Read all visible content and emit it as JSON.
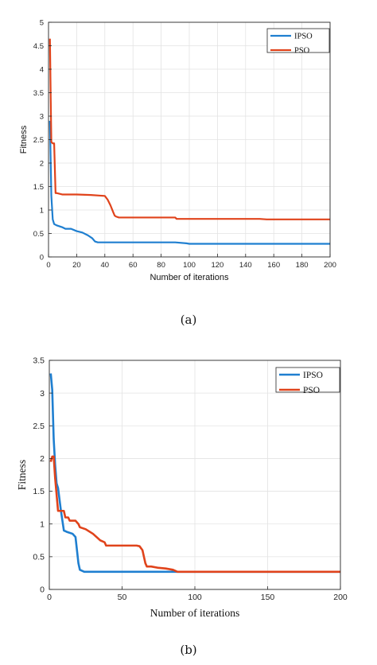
{
  "captions": [
    "(a)",
    "(b)"
  ],
  "chart_data": [
    {
      "type": "line",
      "xlabel": "Number of iterations",
      "ylabel": "Fitness",
      "xlim": [
        0,
        200
      ],
      "ylim": [
        0,
        5
      ],
      "xticks": [
        0,
        20,
        40,
        60,
        80,
        100,
        120,
        140,
        160,
        180,
        200
      ],
      "yticks": [
        0,
        0.5,
        1,
        1.5,
        2,
        2.5,
        3,
        3.5,
        4,
        4.5,
        5
      ],
      "ytick_labels": [
        "0",
        "0.5",
        "1",
        "1.5",
        "2",
        "2.5",
        "3",
        "3.5",
        "4",
        "4.5",
        "5"
      ],
      "grid": true,
      "legend_position": "top-right",
      "series": [
        {
          "name": "IPSO",
          "color": "#1f7fd0",
          "x": [
            1,
            2,
            3,
            4,
            6,
            10,
            12,
            16,
            20,
            24,
            28,
            31,
            33,
            35,
            40,
            60,
            90,
            98,
            100,
            130,
            160,
            200
          ],
          "y": [
            2.9,
            1.3,
            0.8,
            0.7,
            0.67,
            0.63,
            0.6,
            0.6,
            0.55,
            0.52,
            0.46,
            0.4,
            0.33,
            0.31,
            0.31,
            0.31,
            0.31,
            0.29,
            0.28,
            0.28,
            0.28,
            0.28
          ]
        },
        {
          "name": "PSO",
          "color": "#e0431b",
          "x": [
            1,
            1.5,
            2,
            3,
            4,
            5,
            6,
            10,
            15,
            20,
            30,
            40,
            42,
            44,
            46,
            47,
            48,
            50,
            60,
            90,
            91,
            150,
            155,
            200
          ],
          "y": [
            4.65,
            3.5,
            2.45,
            2.42,
            2.42,
            1.36,
            1.36,
            1.33,
            1.33,
            1.33,
            1.32,
            1.3,
            1.22,
            1.1,
            0.95,
            0.88,
            0.86,
            0.84,
            0.84,
            0.84,
            0.81,
            0.81,
            0.8,
            0.8
          ]
        }
      ]
    },
    {
      "type": "line",
      "xlabel": "Number of iterations",
      "ylabel": "Fitness",
      "xlim": [
        0,
        200
      ],
      "ylim": [
        0,
        3.5
      ],
      "xticks": [
        0,
        50,
        100,
        150,
        200
      ],
      "yticks": [
        0,
        0.5,
        1,
        1.5,
        2,
        2.5,
        3,
        3.5
      ],
      "ytick_labels": [
        "0",
        "0.5",
        "1",
        "1.5",
        "2",
        "2.5",
        "3",
        "3.5"
      ],
      "grid": true,
      "legend_position": "top-right",
      "series": [
        {
          "name": "IPSO",
          "color": "#1f7fd0",
          "x": [
            1,
            2,
            3,
            4,
            5,
            6,
            8,
            10,
            12,
            16,
            18,
            19,
            20,
            21,
            24,
            30,
            40,
            60,
            90,
            120,
            160,
            200
          ],
          "y": [
            3.3,
            3.05,
            2.3,
            1.9,
            1.62,
            1.55,
            1.2,
            0.9,
            0.88,
            0.85,
            0.8,
            0.6,
            0.4,
            0.3,
            0.27,
            0.27,
            0.27,
            0.27,
            0.27,
            0.27,
            0.27,
            0.27
          ]
        },
        {
          "name": "PSO",
          "color": "#e0431b",
          "x": [
            1,
            2,
            3,
            4,
            5,
            6,
            8,
            10,
            11,
            13,
            14,
            18,
            20,
            21,
            25,
            30,
            35,
            38,
            39,
            60,
            62,
            64,
            65,
            66,
            67,
            70,
            75,
            80,
            85,
            88,
            90,
            120,
            160,
            200
          ],
          "y": [
            1.95,
            2.03,
            2.03,
            1.7,
            1.45,
            1.2,
            1.2,
            1.2,
            1.1,
            1.1,
            1.05,
            1.05,
            1.0,
            0.95,
            0.92,
            0.85,
            0.75,
            0.72,
            0.67,
            0.67,
            0.66,
            0.6,
            0.5,
            0.4,
            0.35,
            0.35,
            0.33,
            0.32,
            0.3,
            0.27,
            0.27,
            0.27,
            0.27,
            0.27
          ]
        }
      ]
    }
  ]
}
